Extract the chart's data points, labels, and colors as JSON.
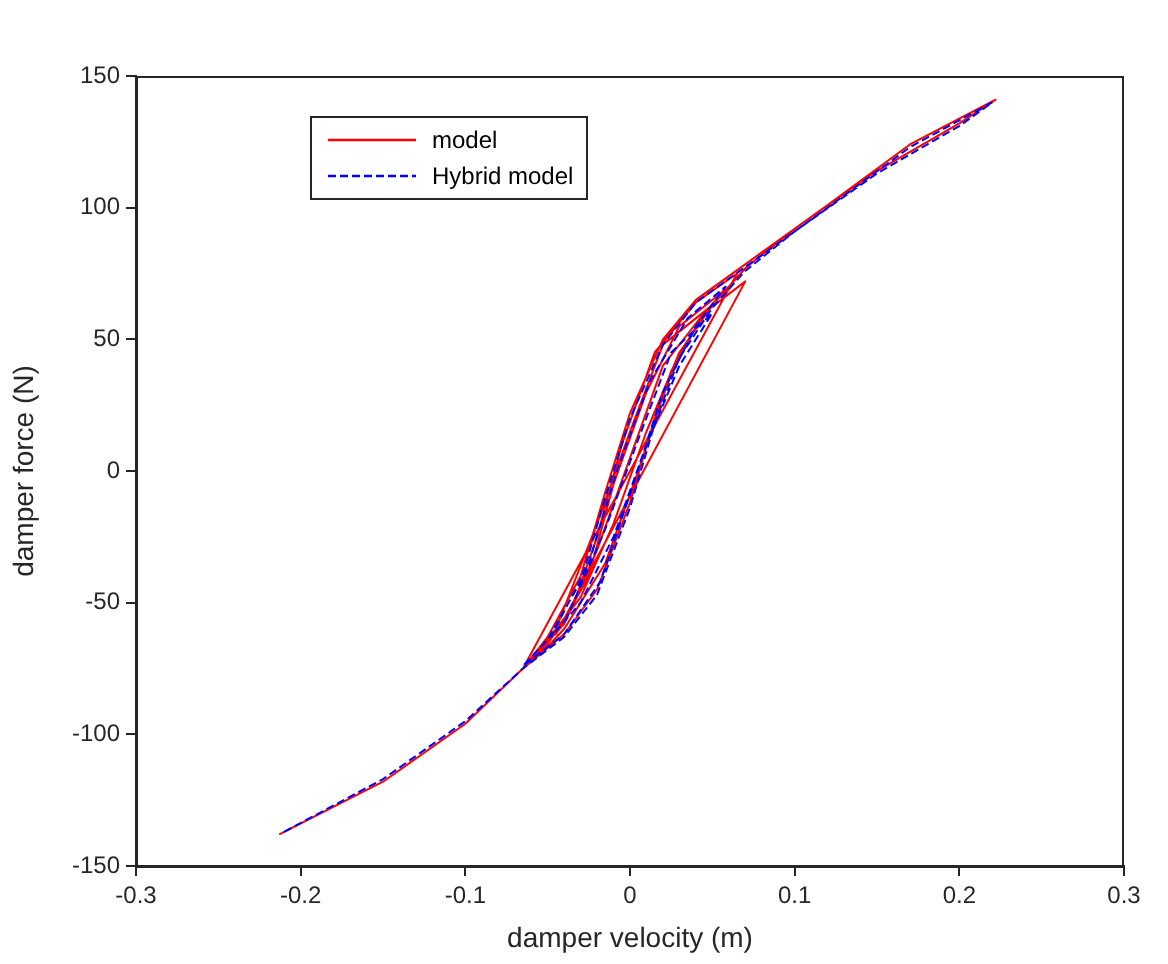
{
  "chart_data": {
    "type": "line",
    "xlabel": "damper velocity (m)",
    "ylabel": "damper force (N)",
    "xlim": [
      -0.3,
      0.3
    ],
    "xticks": [
      -0.3,
      -0.2,
      -0.1,
      0,
      0.1,
      0.2,
      0.3
    ],
    "ylim": [
      -150,
      150
    ],
    "yticks": [
      -150,
      -100,
      -50,
      0,
      50,
      100,
      150
    ],
    "grid": false,
    "legend": "top left",
    "marker": "none",
    "series": [
      {
        "name": "model",
        "color": "#ff0000",
        "line_style": "solid",
        "x": [
          -0.213,
          -0.15,
          -0.1,
          -0.065,
          -0.04,
          -0.02,
          0,
          0.015,
          0.03,
          0.05,
          0.07,
          0.1,
          0.15,
          0.2,
          0.222,
          0.17,
          0.12,
          0.08,
          0.06,
          0.04,
          0.02,
          0,
          -0.015,
          -0.03,
          -0.05,
          -0.065,
          0.065,
          0.04,
          0.015,
          -0.005,
          -0.02,
          -0.035,
          -0.055,
          -0.04,
          -0.015,
          0.005,
          0.025,
          0.045,
          0.06,
          0.03,
          0.01,
          -0.01,
          -0.025,
          -0.045,
          0.07,
          0.045,
          0.02,
          0,
          -0.02,
          -0.04,
          -0.06,
          -0.03,
          -0.01,
          0.01,
          0.03,
          0.05,
          0.02,
          0,
          -0.02,
          -0.045
        ],
        "values": [
          -138,
          -118,
          -96,
          -75,
          -62,
          -45,
          -12,
          20,
          45,
          63,
          77,
          92,
          114,
          132,
          141,
          124,
          101,
          83,
          74,
          65,
          50,
          22,
          -8,
          -40,
          -63,
          -75,
          75,
          64,
          45,
          10,
          -25,
          -52,
          -70,
          -60,
          -35,
          0,
          38,
          60,
          70,
          55,
          30,
          -5,
          -40,
          -62,
          72,
          60,
          40,
          5,
          -30,
          -58,
          -72,
          -48,
          -20,
          15,
          45,
          63,
          48,
          15,
          -20,
          -60
        ]
      },
      {
        "name": "Hybrid model",
        "color": "#0000ff",
        "line_style": "dashed",
        "x": [
          -0.21,
          -0.15,
          -0.1,
          -0.065,
          -0.04,
          -0.02,
          0,
          0.015,
          0.03,
          0.05,
          0.07,
          0.1,
          0.15,
          0.2,
          0.22,
          0.17,
          0.12,
          0.08,
          0.06,
          0.04,
          0.02,
          0,
          -0.015,
          -0.03,
          -0.05,
          -0.065,
          -0.04,
          -0.018,
          0.002,
          0.02,
          0.04,
          0.058,
          0.035,
          0.012,
          -0.008,
          -0.025,
          -0.048,
          -0.03,
          -0.01,
          0.01,
          0.03,
          0.05,
          0.025,
          0.005,
          -0.015,
          -0.04
        ],
        "values": [
          -137,
          -117,
          -95,
          -75,
          -63,
          -47,
          -14,
          18,
          43,
          62,
          76,
          91,
          113,
          131,
          140,
          123,
          100,
          82,
          73,
          64,
          48,
          20,
          -10,
          -42,
          -64,
          -74,
          -62,
          -42,
          -5,
          30,
          55,
          70,
          58,
          34,
          0,
          -35,
          -63,
          -50,
          -25,
          10,
          40,
          60,
          45,
          12,
          -22,
          -58
        ]
      }
    ]
  }
}
